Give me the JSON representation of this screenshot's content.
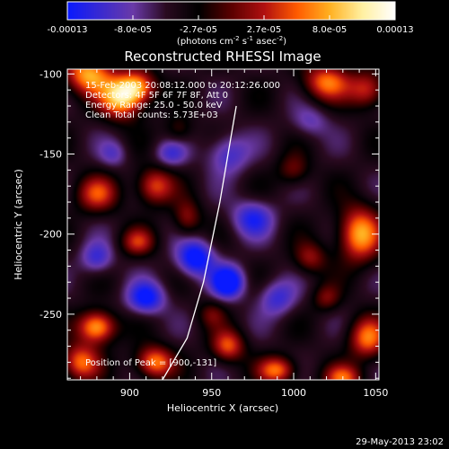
{
  "colors": {
    "background": "#000000",
    "foreground": "#ffffff",
    "limb": "#ffffff",
    "colormap": [
      "#0a1aff",
      "#3a2ad0",
      "#6a3aa8",
      "#2a0a20",
      "#000000",
      "#5a0000",
      "#b01010",
      "#ff5a00",
      "#ffb020",
      "#fff0a0",
      "#ffffff"
    ]
  },
  "colorbar": {
    "tick_labels": [
      "-0.00013",
      "-8.0e-05",
      "-2.7e-05",
      "2.7e-05",
      "8.0e-05",
      "0.00013"
    ],
    "units_main": "(photons cm",
    "units_sup1": "-2",
    "units_mid1": " s",
    "units_sup2": "-1",
    "units_mid2": " asec",
    "units_sup3": "-2",
    "units_end": ")"
  },
  "chart_data": {
    "type": "heatmap",
    "title": "Reconstructed RHESSI Image",
    "xlabel": "Heliocentric X (arcsec)",
    "ylabel": "Heliocentric Y (arcsec)",
    "xlim": [
      862,
      1052
    ],
    "ylim": [
      -291,
      -97
    ],
    "zlim": [
      -0.00013,
      0.00013
    ],
    "x_ticks": [
      900,
      950,
      1000,
      1050
    ],
    "y_ticks": [
      -100,
      -150,
      -200,
      -250
    ],
    "x_tick_labels": [
      "900",
      "950",
      "1000",
      "1050"
    ],
    "y_tick_labels": [
      "-100",
      "-150",
      "-200",
      "-250"
    ],
    "limb": [
      [
        965,
        -120
      ],
      [
        955,
        -180
      ],
      [
        945,
        -230
      ],
      [
        935,
        -265
      ],
      [
        920,
        -291
      ]
    ],
    "peak": [
      900,
      -131
    ],
    "annotations": [
      "15-Feb-2003 20:08:12.000 to 20:12:26.000",
      "Detectors: 4F 5F 6F 7F 8F, Att 0",
      "Energy Range: 25.0 - 50.0 keV",
      "Clean   Total counts: 5.73E+03"
    ],
    "peak_label": "Position of Peak = [900,-131]",
    "blobs": [
      {
        "x": 875,
        "y": -100,
        "sx": 10,
        "sy": 9,
        "v": 0.00012
      },
      {
        "x": 895,
        "y": -115,
        "sx": 9,
        "sy": 9,
        "v": 0.00013
      },
      {
        "x": 905,
        "y": -108,
        "sx": 8,
        "sy": 7,
        "v": 0.0001
      },
      {
        "x": 880,
        "y": -175,
        "sx": 9,
        "sy": 8,
        "v": 8e-05
      },
      {
        "x": 915,
        "y": -170,
        "sx": 8,
        "sy": 8,
        "v": 9e-05
      },
      {
        "x": 935,
        "y": -190,
        "sx": 6,
        "sy": 8,
        "v": 6e-05
      },
      {
        "x": 905,
        "y": -205,
        "sx": 7,
        "sy": 6,
        "v": 7e-05
      },
      {
        "x": 1020,
        "y": -105,
        "sx": 10,
        "sy": 8,
        "v": 0.0001
      },
      {
        "x": 1045,
        "y": -110,
        "sx": 8,
        "sy": 8,
        "v": 8e-05
      },
      {
        "x": 1000,
        "y": -160,
        "sx": 7,
        "sy": 7,
        "v": 5e-05
      },
      {
        "x": 1040,
        "y": -200,
        "sx": 9,
        "sy": 12,
        "v": 0.00012
      },
      {
        "x": 1010,
        "y": -215,
        "sx": 7,
        "sy": 7,
        "v": 6e-05
      },
      {
        "x": 1045,
        "y": -265,
        "sx": 8,
        "sy": 9,
        "v": 0.0001
      },
      {
        "x": 1020,
        "y": -240,
        "sx": 6,
        "sy": 6,
        "v": 5e-05
      },
      {
        "x": 880,
        "y": -258,
        "sx": 8,
        "sy": 7,
        "v": 0.00013
      },
      {
        "x": 870,
        "y": -280,
        "sx": 8,
        "sy": 8,
        "v": 0.0001
      },
      {
        "x": 915,
        "y": -280,
        "sx": 8,
        "sy": 7,
        "v": 0.00011
      },
      {
        "x": 960,
        "y": -270,
        "sx": 7,
        "sy": 7,
        "v": 9e-05
      },
      {
        "x": 990,
        "y": -285,
        "sx": 8,
        "sy": 6,
        "v": 0.0001
      },
      {
        "x": 1030,
        "y": -290,
        "sx": 8,
        "sy": 6,
        "v": 9e-05
      },
      {
        "x": 950,
        "y": -250,
        "sx": 6,
        "sy": 6,
        "v": 4e-05
      },
      {
        "x": 930,
        "y": -135,
        "sx": 6,
        "sy": 6,
        "v": 4e-05
      },
      {
        "x": 960,
        "y": -150,
        "sx": 9,
        "sy": 9,
        "v": -6e-05
      },
      {
        "x": 940,
        "y": -215,
        "sx": 8,
        "sy": 8,
        "v": -0.0001
      },
      {
        "x": 960,
        "y": -230,
        "sx": 7,
        "sy": 7,
        "v": -0.00011
      },
      {
        "x": 910,
        "y": -240,
        "sx": 8,
        "sy": 7,
        "v": -9e-05
      },
      {
        "x": 975,
        "y": -190,
        "sx": 9,
        "sy": 8,
        "v": -7e-05
      },
      {
        "x": 880,
        "y": -215,
        "sx": 7,
        "sy": 7,
        "v": -6e-05
      },
      {
        "x": 925,
        "y": -150,
        "sx": 7,
        "sy": 6,
        "v": -5e-05
      },
      {
        "x": 990,
        "y": -240,
        "sx": 8,
        "sy": 8,
        "v": -6e-05
      },
      {
        "x": 1010,
        "y": -130,
        "sx": 8,
        "sy": 7,
        "v": -4e-05
      },
      {
        "x": 890,
        "y": -150,
        "sx": 6,
        "sy": 6,
        "v": -4e-05
      }
    ]
  },
  "footer": {
    "timestamp": "29-May-2013 23:02"
  }
}
